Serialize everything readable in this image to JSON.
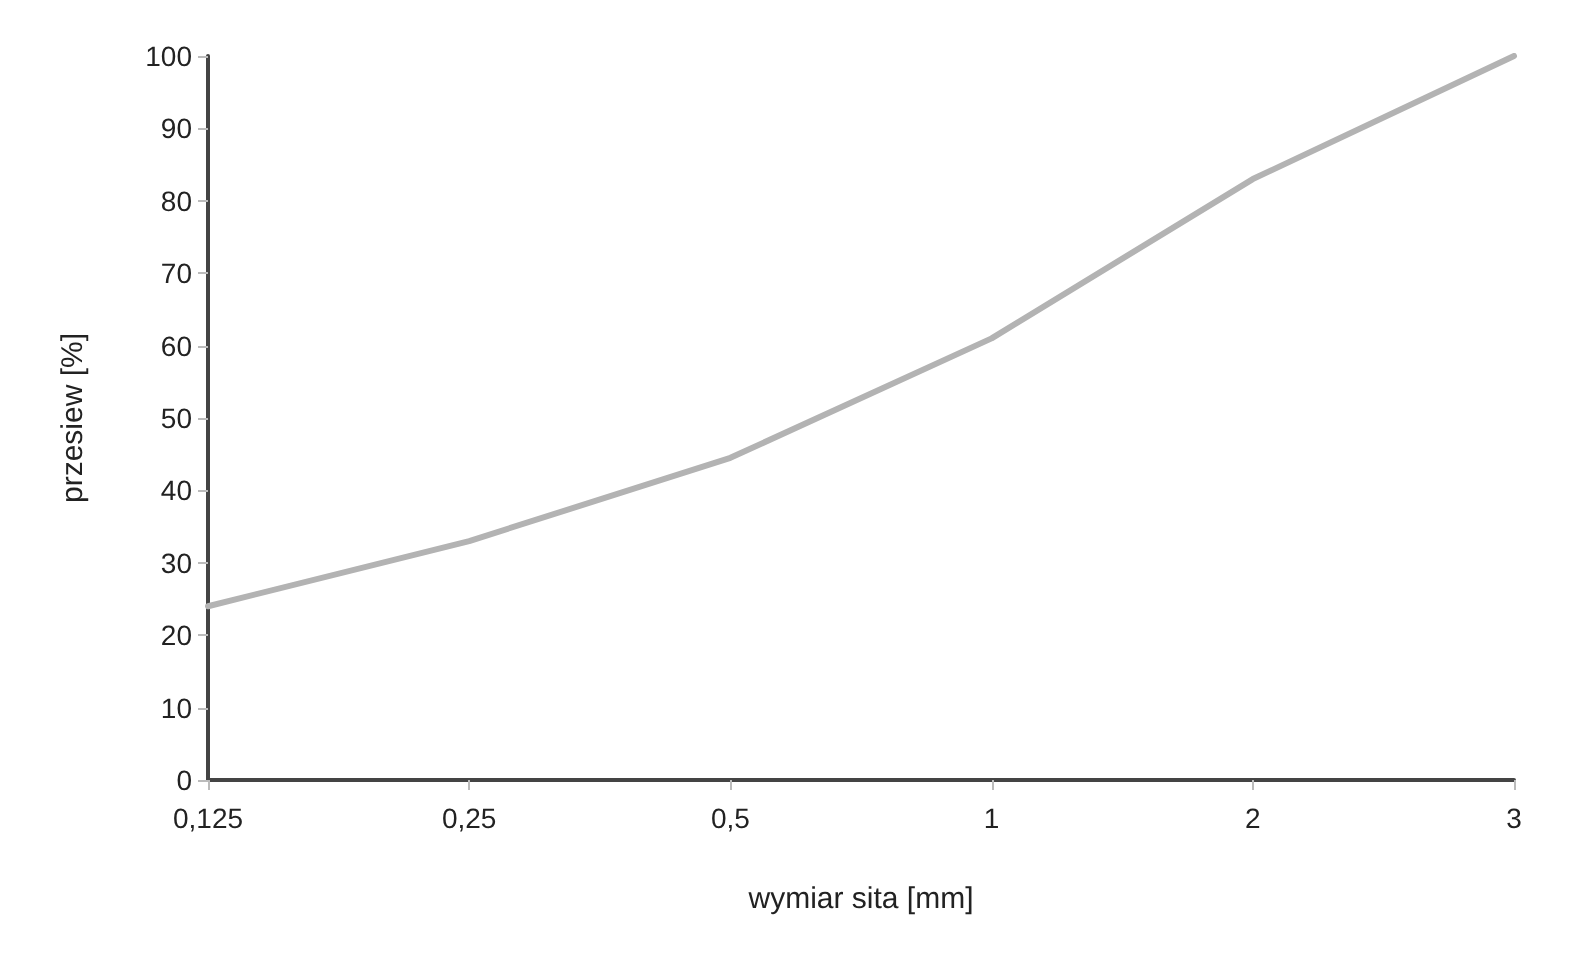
{
  "chart_data": {
    "type": "line",
    "xlabel": "wymiar sita [mm]",
    "ylabel": "przesiew [%]",
    "categories": [
      "0,125",
      "0,25",
      "0,5",
      "1",
      "2",
      "3"
    ],
    "series": [
      {
        "color": "#b3b3b3",
        "values": [
          24,
          33,
          44.5,
          61,
          83,
          100
        ]
      }
    ],
    "ylim": [
      0,
      100
    ],
    "yticks": [
      0,
      10,
      20,
      30,
      40,
      50,
      60,
      70,
      80,
      90,
      100
    ],
    "grid": false,
    "marker": "none",
    "line_style": "solid"
  }
}
